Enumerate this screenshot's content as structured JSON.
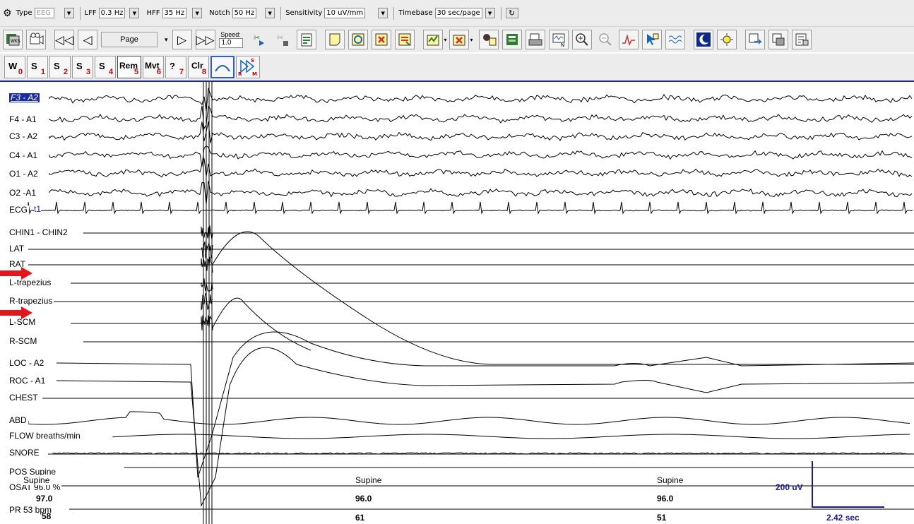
{
  "settings": {
    "type_label": "Type",
    "type_value": "EEG",
    "lff_label": "LFF",
    "lff_value": "0.3 Hz",
    "hff_label": "HFF",
    "hff_value": "35 Hz",
    "notch_label": "Notch",
    "notch_value": "50 Hz",
    "sensitivity_label": "Sensitivity",
    "sensitivity_value": "10 uV/mm",
    "timebase_label": "Timebase",
    "timebase_value": "30 sec/page"
  },
  "toolbar": {
    "page_label": "Page",
    "speed_label": "Speed:",
    "speed_value": "1.0"
  },
  "scoring": [
    {
      "main": "W",
      "sub": "0"
    },
    {
      "main": "S",
      "sub": "1"
    },
    {
      "main": "S",
      "sub": "2"
    },
    {
      "main": "S",
      "sub": "3"
    },
    {
      "main": "S",
      "sub": "4"
    },
    {
      "main": "Rem",
      "sub": "5"
    },
    {
      "main": "Mvt",
      "sub": "6"
    },
    {
      "main": "?",
      "sub": "7"
    },
    {
      "main": "Clr",
      "sub": "8"
    }
  ],
  "channels": [
    "F3 - A2",
    "F4 - A1",
    "C3 - A2",
    "C4 - A1",
    "O1 - A2",
    "O2 -A1",
    "ECG",
    "CHIN1 - CHIN2",
    "LAT",
    "RAT",
    "L-trapezius",
    "R-trapezius",
    "L-SCM",
    "R-SCM",
    "LOC - A2",
    "ROC - A1",
    "CHEST",
    "ABD",
    "FLOW breaths/min",
    "SNORE",
    "POS Supine",
    "OSAT 96.0 %",
    "PR  53 bpm"
  ],
  "ecg_marker": "t1",
  "values": {
    "pos": [
      "Supine",
      "Supine",
      "Supine"
    ],
    "osat": [
      "97.0",
      "96.0",
      "96.0"
    ],
    "pr": [
      "58",
      "61",
      "51"
    ]
  },
  "scale": {
    "amplitude": "200 uV",
    "time": "2.42 sec"
  },
  "colors": {
    "selection": "#1a2aa0",
    "arrow": "#e3161b",
    "scale": "#1a1aa0",
    "score_sub": "#d40000"
  },
  "icons": [
    "settings-icon",
    "montage-icon",
    "video-icon",
    "rewind-icon",
    "back-icon",
    "forward-icon",
    "fast-forward-icon",
    "scissors-icon",
    "note-icon",
    "magnify-plus-icon",
    "magnify-minus-icon",
    "night-icon",
    "day-icon"
  ]
}
